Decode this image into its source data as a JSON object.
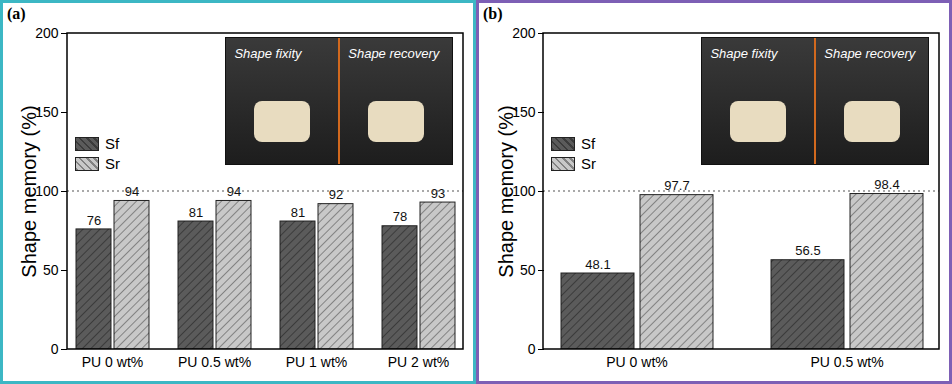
{
  "chart_data": [
    {
      "type": "bar",
      "title": "(a)",
      "y_label": "Shape memory (%)",
      "categories": [
        "PU 0 wt%",
        "PU 0.5 wt%",
        "PU 1 wt%",
        "PU 2 wt%"
      ],
      "series": [
        {
          "name": "Sf",
          "color": "#5b5b5b",
          "values": [
            76,
            81,
            81,
            78
          ]
        },
        {
          "name": "Sr",
          "color": "#c8c8c8",
          "values": [
            94,
            94,
            92,
            93
          ]
        }
      ],
      "ylim": [
        0,
        200
      ],
      "yticks": [
        0,
        50,
        100,
        150,
        200
      ],
      "reference_line": 100,
      "data_labels": true,
      "legend": "left",
      "annotations": [
        "Shape fixity",
        "Shape recovery"
      ]
    },
    {
      "type": "bar",
      "title": "(b)",
      "y_label": "Shape memory (%)",
      "categories": [
        "PU 0 wt%",
        "PU 0.5 wt%"
      ],
      "series": [
        {
          "name": "Sf",
          "color": "#5b5b5b",
          "values": [
            48.1,
            56.5
          ]
        },
        {
          "name": "Sr",
          "color": "#c8c8c8",
          "values": [
            97.7,
            98.4
          ]
        }
      ],
      "ylim": [
        0,
        200
      ],
      "yticks": [
        0,
        50,
        100,
        150,
        200
      ],
      "reference_line": 100,
      "data_labels": true,
      "legend": "left",
      "annotations": [
        "Shape fixity",
        "Shape recovery"
      ]
    }
  ]
}
